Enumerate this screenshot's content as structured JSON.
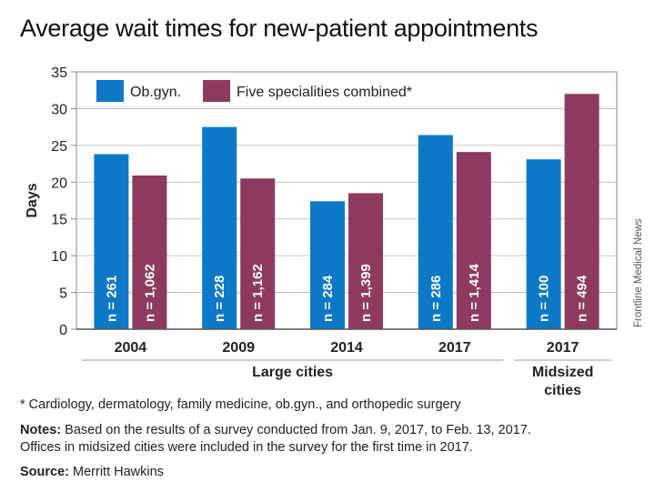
{
  "title": "Average wait times for new-patient appointments",
  "credit": "Frontline Medical News",
  "footnotes": {
    "asterisk": "* Cardiology, dermatology, family medicine, ob.gyn., and orthopedic surgery",
    "notes_label": "Notes:",
    "notes_line1": " Based on the results of a survey conducted from Jan. 9, 2017, to Feb. 13, 2017.",
    "notes_line2": "Offices in midsized cities were included in the survey for the first time in 2017.",
    "source_label": "Source:",
    "source_text": " Merritt Hawkins"
  },
  "chart_data": {
    "type": "bar",
    "ylabel": "Days",
    "ylim": [
      0,
      35
    ],
    "yticks": [
      0,
      5,
      10,
      15,
      20,
      25,
      30,
      35
    ],
    "categories": [
      "2004",
      "2009",
      "2014",
      "2017",
      "2017"
    ],
    "groups": [
      {
        "label": "Large cities",
        "categories": [
          "2004",
          "2009",
          "2014",
          "2017"
        ]
      },
      {
        "label": "Midsized cities",
        "categories": [
          "2017"
        ]
      }
    ],
    "legend_position": "top-left",
    "series": [
      {
        "name": "Ob.gyn.",
        "color": "#0d79c6",
        "values": [
          23.8,
          27.5,
          17.4,
          26.4,
          23.1
        ],
        "labels": [
          "n = 261",
          "n = 228",
          "n = 284",
          "n = 286",
          "n = 100"
        ]
      },
      {
        "name": "Five specialities combined*",
        "color": "#8e3a5f",
        "values": [
          20.9,
          20.5,
          18.5,
          24.1,
          32.0
        ],
        "labels": [
          "n = 1,062",
          "n = 1,162",
          "n = 1,399",
          "n = 1,414",
          "n = 494"
        ]
      }
    ]
  }
}
